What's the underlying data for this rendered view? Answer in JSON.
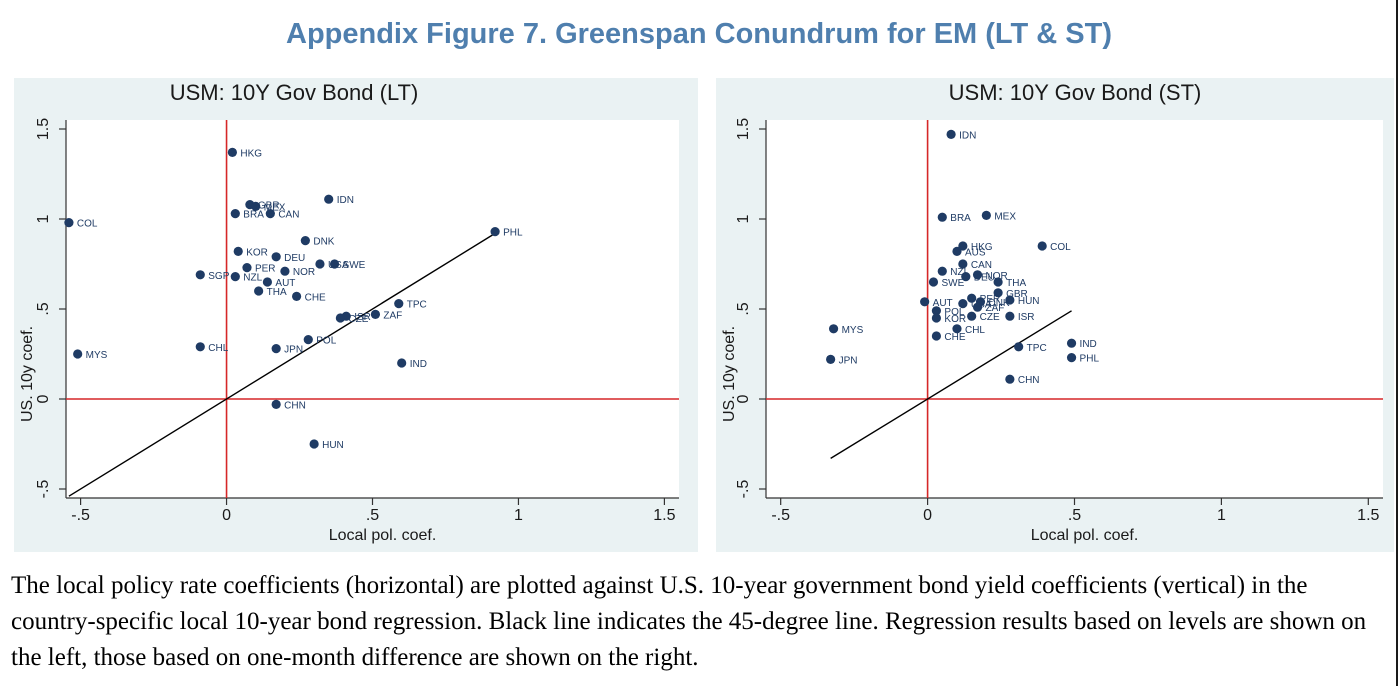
{
  "page": {
    "title": "Appendix Figure 7. Greenspan Conundrum for EM (LT & ST)",
    "caption": "The local policy rate coefficients (horizontal) are plotted against U.S. 10-year government bond yield coefficients (vertical) in the country-specific local 10-year bond regression. Black line indicates the 45-degree line. Regression results based on levels are shown on the left, those based on one-month difference are shown on the right."
  },
  "colors": {
    "marker": "#1f3b64",
    "ref_line": "#d62728",
    "diag": "#000000",
    "panel_bg": "#eaf2f3",
    "title": "#4f7fae"
  },
  "chart_data": [
    {
      "type": "scatter",
      "title": "USM: 10Y Gov Bond (LT)",
      "xlabel": "Local pol. coef.",
      "ylabel": "US. 10y coef.",
      "xlim": [
        -0.55,
        1.55
      ],
      "ylim": [
        -0.55,
        1.55
      ],
      "xticks": [
        -0.5,
        0,
        0.5,
        1,
        1.5
      ],
      "xtick_labels": [
        "-.5",
        "0",
        ".5",
        "1",
        "1.5"
      ],
      "yticks": [
        -0.5,
        0,
        0.5,
        1,
        1.5
      ],
      "ytick_labels": [
        "-.5",
        "0",
        ".5",
        "1",
        "1.5"
      ],
      "grid": false,
      "reference_lines": {
        "x0": true,
        "y0": true,
        "diagonal_45": [
          -0.54,
          0.92
        ]
      },
      "points": [
        {
          "label": "HKG",
          "x": 0.02,
          "y": 1.37
        },
        {
          "label": "IDN",
          "x": 0.35,
          "y": 1.11
        },
        {
          "label": "GBR",
          "x": 0.08,
          "y": 1.08
        },
        {
          "label": "MEX",
          "x": 0.1,
          "y": 1.07
        },
        {
          "label": "BRA",
          "x": 0.03,
          "y": 1.03
        },
        {
          "label": "CAN",
          "x": 0.15,
          "y": 1.03
        },
        {
          "label": "COL",
          "x": -0.54,
          "y": 0.98
        },
        {
          "label": "PHL",
          "x": 0.92,
          "y": 0.93
        },
        {
          "label": "DNK",
          "x": 0.27,
          "y": 0.88
        },
        {
          "label": "KOR",
          "x": 0.04,
          "y": 0.82
        },
        {
          "label": "DEU",
          "x": 0.17,
          "y": 0.79
        },
        {
          "label": "PER",
          "x": 0.07,
          "y": 0.73
        },
        {
          "label": "NOR",
          "x": 0.2,
          "y": 0.71
        },
        {
          "label": "USA",
          "x": 0.32,
          "y": 0.75
        },
        {
          "label": "SWE",
          "x": 0.37,
          "y": 0.75
        },
        {
          "label": "SGP",
          "x": -0.09,
          "y": 0.69
        },
        {
          "label": "NZL",
          "x": 0.03,
          "y": 0.68
        },
        {
          "label": "AUT",
          "x": 0.14,
          "y": 0.65
        },
        {
          "label": "THA",
          "x": 0.11,
          "y": 0.6
        },
        {
          "label": "CHE",
          "x": 0.24,
          "y": 0.57
        },
        {
          "label": "TPC",
          "x": 0.59,
          "y": 0.53
        },
        {
          "label": "ZAF",
          "x": 0.51,
          "y": 0.47
        },
        {
          "label": "ISR",
          "x": 0.41,
          "y": 0.46
        },
        {
          "label": "CZE",
          "x": 0.39,
          "y": 0.45
        },
        {
          "label": "POL",
          "x": 0.28,
          "y": 0.33
        },
        {
          "label": "CHL",
          "x": -0.09,
          "y": 0.29
        },
        {
          "label": "JPN",
          "x": 0.17,
          "y": 0.28
        },
        {
          "label": "MYS",
          "x": -0.51,
          "y": 0.25
        },
        {
          "label": "IND",
          "x": 0.6,
          "y": 0.2
        },
        {
          "label": "CHN",
          "x": 0.17,
          "y": -0.03
        },
        {
          "label": "HUN",
          "x": 0.3,
          "y": -0.25
        }
      ]
    },
    {
      "type": "scatter",
      "title": "USM: 10Y Gov Bond (ST)",
      "xlabel": "Local pol. coef.",
      "ylabel": "US. 10y coef.",
      "xlim": [
        -0.55,
        1.55
      ],
      "ylim": [
        -0.55,
        1.55
      ],
      "xticks": [
        -0.5,
        0,
        0.5,
        1,
        1.5
      ],
      "xtick_labels": [
        "-.5",
        "0",
        ".5",
        "1",
        "1.5"
      ],
      "yticks": [
        -0.5,
        0,
        0.5,
        1,
        1.5
      ],
      "ytick_labels": [
        "-.5",
        "0",
        ".5",
        "1",
        "1.5"
      ],
      "grid": false,
      "reference_lines": {
        "x0": true,
        "y0": true,
        "diagonal_45": [
          -0.33,
          0.49
        ]
      },
      "points": [
        {
          "label": "IDN",
          "x": 0.08,
          "y": 1.47
        },
        {
          "label": "BRA",
          "x": 0.05,
          "y": 1.01
        },
        {
          "label": "MEX",
          "x": 0.2,
          "y": 1.02
        },
        {
          "label": "HKG",
          "x": 0.12,
          "y": 0.85
        },
        {
          "label": "COL",
          "x": 0.39,
          "y": 0.85
        },
        {
          "label": "AUS",
          "x": 0.1,
          "y": 0.82
        },
        {
          "label": "CAN",
          "x": 0.12,
          "y": 0.75
        },
        {
          "label": "NZL",
          "x": 0.05,
          "y": 0.71
        },
        {
          "label": "NOR",
          "x": 0.17,
          "y": 0.69
        },
        {
          "label": "DEU",
          "x": 0.13,
          "y": 0.68
        },
        {
          "label": "SWE",
          "x": 0.02,
          "y": 0.65
        },
        {
          "label": "THA",
          "x": 0.24,
          "y": 0.65
        },
        {
          "label": "GBR",
          "x": 0.24,
          "y": 0.59
        },
        {
          "label": "PER",
          "x": 0.15,
          "y": 0.56
        },
        {
          "label": "HUN",
          "x": 0.28,
          "y": 0.55
        },
        {
          "label": "DNK",
          "x": 0.18,
          "y": 0.54
        },
        {
          "label": "AUT",
          "x": -0.01,
          "y": 0.54
        },
        {
          "label": "USA",
          "x": 0.12,
          "y": 0.53
        },
        {
          "label": "ZAF",
          "x": 0.17,
          "y": 0.51
        },
        {
          "label": "POL",
          "x": 0.03,
          "y": 0.49
        },
        {
          "label": "KOR",
          "x": 0.03,
          "y": 0.45
        },
        {
          "label": "CZE",
          "x": 0.15,
          "y": 0.46
        },
        {
          "label": "ISR",
          "x": 0.28,
          "y": 0.46
        },
        {
          "label": "CHL",
          "x": 0.1,
          "y": 0.39
        },
        {
          "label": "CHE",
          "x": 0.03,
          "y": 0.35
        },
        {
          "label": "MYS",
          "x": -0.32,
          "y": 0.39
        },
        {
          "label": "TPC",
          "x": 0.31,
          "y": 0.29
        },
        {
          "label": "IND",
          "x": 0.49,
          "y": 0.31
        },
        {
          "label": "PHL",
          "x": 0.49,
          "y": 0.23
        },
        {
          "label": "JPN",
          "x": -0.33,
          "y": 0.22
        },
        {
          "label": "CHN",
          "x": 0.28,
          "y": 0.11
        }
      ]
    }
  ]
}
